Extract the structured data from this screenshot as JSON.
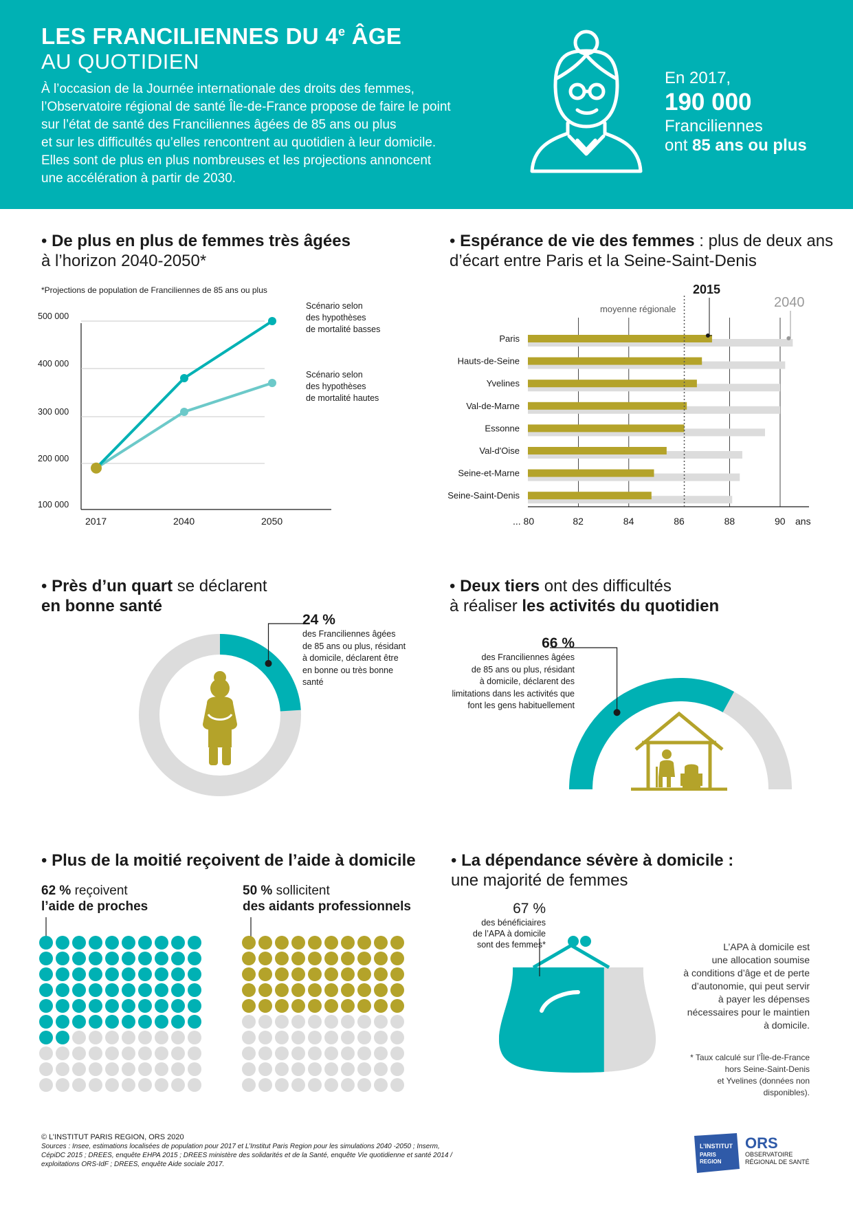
{
  "colors": {
    "teal": "#00b1b4",
    "light_teal": "#6cc9c9",
    "olive": "#b4a32a",
    "grey": "#dcdcdc",
    "dark_grey": "#bdbdbd"
  },
  "header": {
    "title_line1_part1": "LES FRANCILIENNES DU 4",
    "title_line1_sup": "e",
    "title_line1_part2": " ÂGE",
    "title_line2": "AU QUOTIDIEN",
    "intro": [
      "À l’occasion de la Journée internationale des droits des femmes,",
      "l’Observatoire régional de santé Île-de-France propose de faire le point",
      "sur l’état de santé des Franciliennes âgées de 85 ans ou plus",
      "et sur les difficultés qu’elles rencontrent au quotidien à leur domicile.",
      "Elles sont de plus en plus nombreuses et les projections annoncent",
      "une accélération à partir de 2030."
    ],
    "stat_line1": "En 2017,",
    "stat_big": "190 000",
    "stat_line3": "Franciliennes",
    "stat_line4_a": "ont ",
    "stat_line4_b": "85 ans ou plus",
    "icon": "elderly-woman-icon"
  },
  "section1": {
    "heading_bold": "De plus en plus de femmes très âgées",
    "heading_rest": "à l’horizon 2040-2050*",
    "note": "*Projections de population de Franciliennes de 85 ans ou plus",
    "series_labels": [
      [
        "Scénario selon",
        "des hypothèses",
        "de mortalité basses"
      ],
      [
        "Scénario selon",
        "des hypothèses",
        "de mortalité hautes"
      ]
    ]
  },
  "section2": {
    "heading_bold": "Espérance de vie des femmes",
    "heading_rest1": " : plus de deux ans",
    "heading_rest2": "d’écart entre Paris et la Seine-Saint-Denis",
    "label_2015": "2015",
    "label_2040": "2040",
    "label_avg": "moyenne régionale",
    "unit": "ans"
  },
  "section3": {
    "heading_bold1": "Près d’un quart",
    "heading_rest1": " se déclarent",
    "heading_bold2": "en bonne santé",
    "pct": "24 %",
    "desc": [
      "des Franciliennes âgées",
      "de 85 ans ou plus, résidant",
      "à domicile, déclarent être",
      "en bonne ou très bonne",
      "santé"
    ],
    "value": 0.24,
    "icon": "woman-figure-icon"
  },
  "section4": {
    "heading_bold1": "Deux tiers",
    "heading_rest1": " ont des difficultés",
    "heading_rest2": "à réaliser ",
    "heading_bold2": "les activités du quotidien",
    "pct": "66 %",
    "desc": [
      "des Franciliennes âgées",
      "de 85 ans ou plus, résidant",
      "à domicile, déclarent des",
      "limitations dans les activités que",
      "font les gens habituellement"
    ],
    "value": 0.66,
    "icon": "house-elderly-icon"
  },
  "section5": {
    "heading_bold": "Plus de la moitié reçoivent de l’aide à domicile",
    "left_pct": "62 %",
    "left_rest": " reçoivent",
    "left_bold2": "l’aide de proches",
    "left_value": 62,
    "right_pct": "50 %",
    "right_rest": " sollicitent",
    "right_bold2": "des aidants professionnels",
    "right_value": 50
  },
  "section6": {
    "heading_bold": "La dépendance sévère à domicile :",
    "heading_rest": "une majorité de femmes",
    "pct": "67 %",
    "desc": [
      "des bénéficiaires",
      "de l’APA à domicile",
      "sont des femmes*"
    ],
    "value": 0.67,
    "apa_text": [
      "L’APA à domicile est",
      "une allocation soumise",
      "à conditions d’âge et de perte",
      "d’autonomie, qui peut servir",
      "à payer les dépenses",
      "nécessaires pour le maintien",
      "à domicile."
    ],
    "footnote": [
      "* Taux calculé sur l’Île-de-France",
      "hors Seine-Saint-Denis",
      "et Yvelines (données non",
      "disponibles)."
    ],
    "icon": "purse-icon"
  },
  "footer": {
    "copyright": "© L’INSTITUT PARIS REGION, ORS 2020",
    "sources": "Sources : Insee, estimations localisées de population pour 2017 et L’Institut Paris Region pour les simulations 2040 -2050 ; Inserm, CépiDC 2015 ; DREES, enquête EHPA 2015 ; DREES ministère des solidarités et de la Santé, enquête Vie quotidienne et santé 2014 / exploitations ORS-IdF ; DREES, enquête Aide sociale 2017.",
    "logo1_line1": "L’INSTITUT",
    "logo1_line2": "PARIS",
    "logo1_line3": "REGION",
    "logo2_big": "ORS",
    "logo2_line1": "OBSERVATOIRE",
    "logo2_line2": "RÉGIONAL DE SANTÉ"
  },
  "chart_data": [
    {
      "type": "line",
      "title": "",
      "x": [
        2017,
        2040,
        2050
      ],
      "x_tick_labels": [
        "2017",
        "2040",
        "2050"
      ],
      "y_tick_labels": [
        "100 000",
        "200 000",
        "300 000",
        "400 000",
        "500 000"
      ],
      "ylim": [
        100000,
        500000
      ],
      "series": [
        {
          "name": "Scénario selon des hypothèses de mortalité basses",
          "values": [
            190000,
            380000,
            500000
          ]
        },
        {
          "name": "Scénario selon des hypothèses de mortalité hautes",
          "values": [
            190000,
            310000,
            370000
          ]
        }
      ]
    },
    {
      "type": "bar",
      "orientation": "horizontal",
      "categories": [
        "Paris",
        "Hauts-de-Seine",
        "Yvelines",
        "Val-de-Marne",
        "Essonne",
        "Val-d'Oise",
        "Seine-et-Marne",
        "Seine-Saint-Denis"
      ],
      "series": [
        {
          "name": "2015",
          "values": [
            87.3,
            86.9,
            86.7,
            86.3,
            86.2,
            85.5,
            85.0,
            84.9
          ]
        },
        {
          "name": "2040",
          "values": [
            90.5,
            90.2,
            90.0,
            90.0,
            89.4,
            88.5,
            88.4,
            88.1
          ]
        }
      ],
      "regional_average": 86.2,
      "x_tick_labels": [
        "... 80",
        "82",
        "84",
        "86",
        "88",
        "90"
      ],
      "xlim": [
        80,
        91
      ],
      "xlabel": "ans"
    }
  ]
}
